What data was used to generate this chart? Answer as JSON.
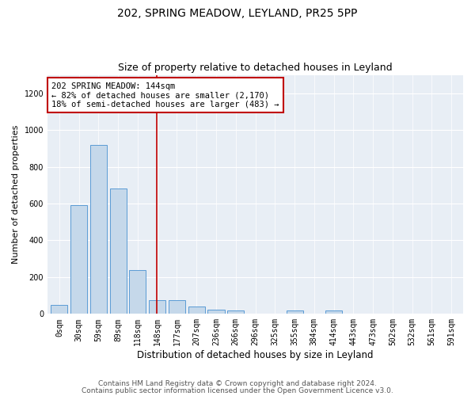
{
  "title1": "202, SPRING MEADOW, LEYLAND, PR25 5PP",
  "title2": "Size of property relative to detached houses in Leyland",
  "xlabel": "Distribution of detached houses by size in Leyland",
  "ylabel": "Number of detached properties",
  "bar_labels": [
    "0sqm",
    "30sqm",
    "59sqm",
    "89sqm",
    "118sqm",
    "148sqm",
    "177sqm",
    "207sqm",
    "236sqm",
    "266sqm",
    "296sqm",
    "325sqm",
    "355sqm",
    "384sqm",
    "414sqm",
    "443sqm",
    "473sqm",
    "502sqm",
    "532sqm",
    "561sqm",
    "591sqm"
  ],
  "bar_values": [
    50,
    590,
    920,
    680,
    240,
    75,
    75,
    40,
    25,
    20,
    0,
    0,
    18,
    0,
    18,
    0,
    0,
    0,
    0,
    0,
    0
  ],
  "bar_color": "#c5d8ea",
  "bar_edge_color": "#5b9bd5",
  "vline_x": 4.97,
  "vline_color": "#c00000",
  "annotation_text": "202 SPRING MEADOW: 144sqm\n← 82% of detached houses are smaller (2,170)\n18% of semi-detached houses are larger (483) →",
  "annotation_box_color": "#ffffff",
  "annotation_box_edge_color": "#c00000",
  "ylim": [
    0,
    1300
  ],
  "yticks": [
    0,
    200,
    400,
    600,
    800,
    1000,
    1200
  ],
  "plot_bg_color": "#e8eef5",
  "footer1": "Contains HM Land Registry data © Crown copyright and database right 2024.",
  "footer2": "Contains public sector information licensed under the Open Government Licence v3.0.",
  "title1_fontsize": 10,
  "title2_fontsize": 9,
  "xlabel_fontsize": 8.5,
  "ylabel_fontsize": 8,
  "tick_fontsize": 7,
  "annotation_fontsize": 7.5,
  "footer_fontsize": 6.5
}
